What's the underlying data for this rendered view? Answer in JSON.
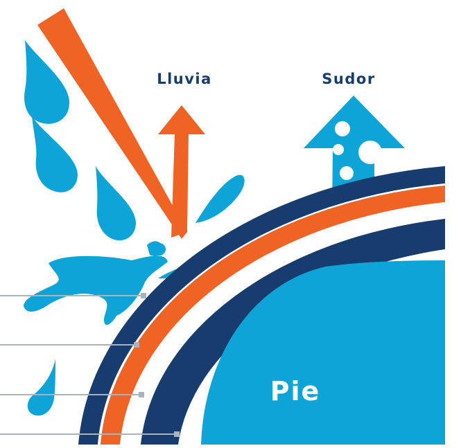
{
  "labels": {
    "rain": "Lluvia",
    "sweat": "Sudor",
    "foot": "Pie"
  },
  "colors": {
    "navy": "#173d6e",
    "orange": "#ef6325",
    "blue": "#0ea4d8",
    "line_gray": "#a9b3bb",
    "white": "#ffffff"
  },
  "icons": [
    "raindrop-icon",
    "incoming-rain-arrow-icon",
    "deflection-arrow-icon",
    "splash-icon",
    "sweat-arrow-icon",
    "vapor-bubble-icon"
  ]
}
